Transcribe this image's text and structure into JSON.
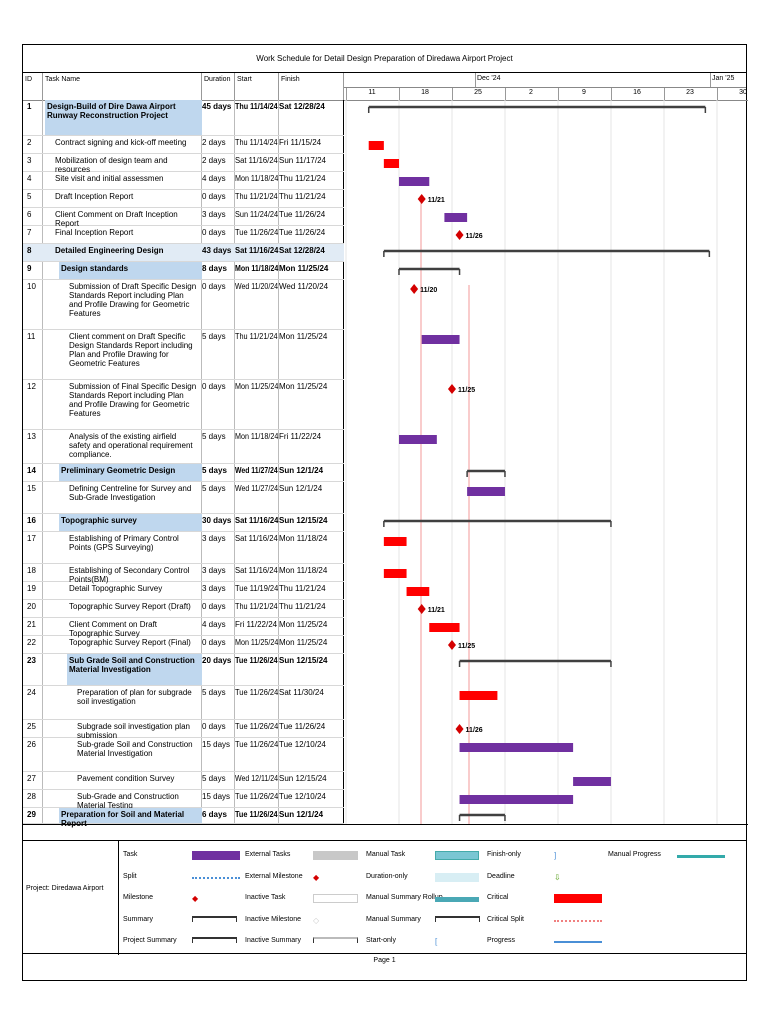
{
  "title": "Work Schedule for Detail Design Preparation of Diredawa Airport Project",
  "columns": {
    "id": "ID",
    "task_name": "Task Name",
    "duration": "Duration",
    "start": "Start",
    "finish": "Finish"
  },
  "timeline": {
    "months": [
      "Dec '24",
      "Jan '25"
    ],
    "days": [
      "11",
      "18",
      "25",
      "2",
      "9",
      "16",
      "23",
      "30"
    ]
  },
  "tasks": [
    {
      "id": "1",
      "name": "Design-Build of Dire Dawa Airport Runway Reconstruction Project",
      "duration": "45 days",
      "start": "Thu 11/14/24",
      "finish": "Sat 12/28/24",
      "type": "project",
      "indent": 0
    },
    {
      "id": "2",
      "name": "Contract signing and kick-off meeting",
      "duration": "2 days",
      "start": "Thu 11/14/24",
      "finish": "Fri 11/15/24",
      "type": "critical",
      "indent": 1
    },
    {
      "id": "3",
      "name": "Mobilization of design team and resources",
      "duration": "2 days",
      "start": "Sat 11/16/24",
      "finish": "Sun 11/17/24",
      "type": "critical",
      "indent": 1
    },
    {
      "id": "4",
      "name": "Site visit and initial assessmen",
      "duration": "4 days",
      "start": "Mon 11/18/24",
      "finish": "Thu 11/21/24",
      "type": "task",
      "indent": 1
    },
    {
      "id": "5",
      "name": "Draft Inception Report",
      "duration": "0 days",
      "start": "Thu 11/21/24",
      "finish": "Thu 11/21/24",
      "type": "milestone",
      "indent": 1,
      "label": "11/21"
    },
    {
      "id": "6",
      "name": "Client Comment on Draft Inception Report",
      "duration": "3 days",
      "start": "Sun 11/24/24",
      "finish": "Tue 11/26/24",
      "type": "task",
      "indent": 1
    },
    {
      "id": "7",
      "name": "Final Inception Report",
      "duration": "0 days",
      "start": "Tue 11/26/24",
      "finish": "Tue 11/26/24",
      "type": "milestone",
      "indent": 1,
      "label": "11/26"
    },
    {
      "id": "8",
      "name": "Detailed Engineering Design",
      "duration": "43 days",
      "start": "Sat 11/16/24",
      "finish": "Sat 12/28/24",
      "type": "summary",
      "indent": 1
    },
    {
      "id": "9",
      "name": "Design standards",
      "duration": "8 days",
      "start": "Mon 11/18/24",
      "finish": "Mon 11/25/24",
      "type": "summary",
      "indent": 2
    },
    {
      "id": "10",
      "name": "Submission of Draft Specific Design Standards Report including Plan and Profile Drawing for Geometric Features",
      "duration": "0 days",
      "start": "Wed 11/20/24",
      "finish": "Wed 11/20/24",
      "type": "milestone",
      "indent": 3,
      "label": "11/20"
    },
    {
      "id": "11",
      "name": "Client comment on Draft Specific Design Standards Report including Plan and Profile Drawing for Geometric Features",
      "duration": "5 days",
      "start": "Thu 11/21/24",
      "finish": "Mon 11/25/24",
      "type": "task",
      "indent": 3
    },
    {
      "id": "12",
      "name": "Submission of Final Specific Design Standards Report including Plan and Profile Drawing for Geometric Features",
      "duration": "0 days",
      "start": "Mon 11/25/24",
      "finish": "Mon 11/25/24",
      "type": "milestone",
      "indent": 3,
      "label": "11/25"
    },
    {
      "id": "13",
      "name": "Analysis of the existing airfield safety and operational requirement compliance.",
      "duration": "5 days",
      "start": "Mon 11/18/24",
      "finish": "Fri 11/22/24",
      "type": "task",
      "indent": 3
    },
    {
      "id": "14",
      "name": "Preliminary Geometric Design",
      "duration": "5 days",
      "start": "Wed 11/27/24",
      "finish": "Sun 12/1/24",
      "type": "summary",
      "indent": 2
    },
    {
      "id": "15",
      "name": "Defining Centreline for Survey and Sub-Grade Investigation",
      "duration": "5 days",
      "start": "Wed 11/27/24",
      "finish": "Sun 12/1/24",
      "type": "task",
      "indent": 3
    },
    {
      "id": "16",
      "name": "Topographic survey",
      "duration": "30 days",
      "start": "Sat 11/16/24",
      "finish": "Sun 12/15/24",
      "type": "summary",
      "indent": 2
    },
    {
      "id": "17",
      "name": "Establishing of Primary Control Points (GPS Surveying)",
      "duration": "3 days",
      "start": "Sat 11/16/24",
      "finish": "Mon 11/18/24",
      "type": "critical",
      "indent": 3
    },
    {
      "id": "18",
      "name": "Establishing of Secondary Control Points(BM)",
      "duration": "3 days",
      "start": "Sat 11/16/24",
      "finish": "Mon 11/18/24",
      "type": "critical",
      "indent": 3
    },
    {
      "id": "19",
      "name": "Detail Topographic Survey",
      "duration": "3 days",
      "start": "Tue 11/19/24",
      "finish": "Thu 11/21/24",
      "type": "critical",
      "indent": 3
    },
    {
      "id": "20",
      "name": "Topographic Survey Report (Draft)",
      "duration": "0 days",
      "start": "Thu 11/21/24",
      "finish": "Thu 11/21/24",
      "type": "milestone",
      "indent": 3,
      "label": "11/21"
    },
    {
      "id": "21",
      "name": "Client Comment on Draft Topographic Survey",
      "duration": "4 days",
      "start": "Fri 11/22/24",
      "finish": "Mon 11/25/24",
      "type": "critical",
      "indent": 3
    },
    {
      "id": "22",
      "name": "Topographic Survey Report (Final)",
      "duration": "0 days",
      "start": "Mon 11/25/24",
      "finish": "Mon 11/25/24",
      "type": "milestone",
      "indent": 3,
      "label": "11/25"
    },
    {
      "id": "23",
      "name": "Sub Grade Soil and Construction Material Investigation",
      "duration": "20 days",
      "start": "Tue 11/26/24",
      "finish": "Sun 12/15/24",
      "type": "summary",
      "indent": 3
    },
    {
      "id": "24",
      "name": "Preparation of plan for subgrade soil investigation",
      "duration": "5 days",
      "start": "Tue 11/26/24",
      "finish": "Sat 11/30/24",
      "type": "critical",
      "indent": 4
    },
    {
      "id": "25",
      "name": "Subgrade soil investigation plan submission",
      "duration": "0 days",
      "start": "Tue 11/26/24",
      "finish": "Tue 11/26/24",
      "type": "milestone",
      "indent": 4,
      "label": "11/26"
    },
    {
      "id": "26",
      "name": "Sub-grade Soil and Construction Material Investigation",
      "duration": "15 days",
      "start": "Tue 11/26/24",
      "finish": "Tue 12/10/24",
      "type": "task",
      "indent": 4
    },
    {
      "id": "27",
      "name": "Pavement condition Survey",
      "duration": "5 days",
      "start": "Wed 12/11/24",
      "finish": "Sun 12/15/24",
      "type": "task",
      "indent": 4
    },
    {
      "id": "28",
      "name": "Sub-Grade and Construction Material Testing",
      "duration": "15 days",
      "start": "Tue 11/26/24",
      "finish": "Tue 12/10/24",
      "type": "task",
      "indent": 4
    },
    {
      "id": "29",
      "name": "Preparation for Soil and Material Report",
      "duration": "6 days",
      "start": "Tue 11/26/24",
      "finish": "Sun 12/1/24",
      "type": "summary",
      "indent": 2
    }
  ],
  "legend": {
    "project": "Project: Diredawa Airport",
    "items": [
      {
        "label": "Task",
        "symbol": "task"
      },
      {
        "label": "Split",
        "symbol": "split"
      },
      {
        "label": "Milestone",
        "symbol": "milestone"
      },
      {
        "label": "Summary",
        "symbol": "summary"
      },
      {
        "label": "Project Summary",
        "symbol": "project-summary"
      },
      {
        "label": "External Tasks",
        "symbol": "external-task"
      },
      {
        "label": "External Milestone",
        "symbol": "external-milestone"
      },
      {
        "label": "Inactive Task",
        "symbol": "inactive-task"
      },
      {
        "label": "Inactive Milestone",
        "symbol": "inactive-milestone"
      },
      {
        "label": "Inactive Summary",
        "symbol": "inactive-summary"
      },
      {
        "label": "Manual Task",
        "symbol": "manual-task"
      },
      {
        "label": "Duration-only",
        "symbol": "duration-only"
      },
      {
        "label": "Manual Summary Rollup",
        "symbol": "manual-summary-rollup"
      },
      {
        "label": "Manual Summary",
        "symbol": "manual-summary"
      },
      {
        "label": "Start-only",
        "symbol": "start-only"
      },
      {
        "label": "Finish-only",
        "symbol": "finish-only"
      },
      {
        "label": "Deadline",
        "symbol": "deadline"
      },
      {
        "label": "Critical",
        "symbol": "critical"
      },
      {
        "label": "Critical Split",
        "symbol": "critical-split"
      },
      {
        "label": "Progress",
        "symbol": "progress"
      },
      {
        "label": "Manual Progress",
        "symbol": "manual-progress"
      }
    ]
  },
  "footer": "Page 1",
  "colors": {
    "task": "#7030a0",
    "critical": "#ff0000",
    "summary": "#404040",
    "select": "#bfd7ee",
    "manual": "#7ac6d3"
  }
}
